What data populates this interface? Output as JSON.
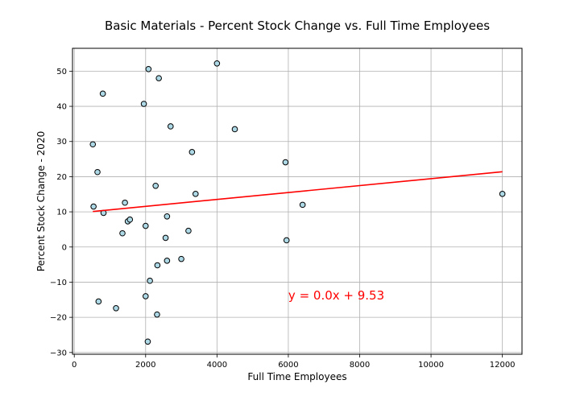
{
  "chart_data": {
    "type": "scatter",
    "title": "Basic Materials - Percent Stock Change vs. Full Time Employees",
    "xlabel": "Full Time Employees",
    "ylabel": "Percent Stock Change - 2020",
    "xlim": [
      -50,
      12550
    ],
    "ylim": [
      -30.5,
      56.5
    ],
    "xticks": [
      0,
      2000,
      4000,
      6000,
      8000,
      10000,
      12000
    ],
    "yticks": [
      -30,
      -20,
      -10,
      0,
      10,
      20,
      30,
      40,
      50
    ],
    "grid": true,
    "marker_fill": "#add8e6",
    "marker_edge": "#000000",
    "regression_color": "#ff0000",
    "points": [
      {
        "x": 520,
        "y": 29.2
      },
      {
        "x": 540,
        "y": 11.5
      },
      {
        "x": 650,
        "y": 21.3
      },
      {
        "x": 680,
        "y": -15.5
      },
      {
        "x": 800,
        "y": 43.6
      },
      {
        "x": 820,
        "y": 9.7
      },
      {
        "x": 1170,
        "y": -17.4
      },
      {
        "x": 1350,
        "y": 3.9
      },
      {
        "x": 1420,
        "y": 12.6
      },
      {
        "x": 1500,
        "y": 7.3
      },
      {
        "x": 1560,
        "y": 7.8
      },
      {
        "x": 1950,
        "y": 40.7
      },
      {
        "x": 2000,
        "y": 6.0
      },
      {
        "x": 2000,
        "y": -14.0
      },
      {
        "x": 2060,
        "y": -26.9
      },
      {
        "x": 2080,
        "y": 50.6
      },
      {
        "x": 2120,
        "y": -9.6
      },
      {
        "x": 2280,
        "y": 17.4
      },
      {
        "x": 2320,
        "y": -19.2
      },
      {
        "x": 2330,
        "y": -5.2
      },
      {
        "x": 2370,
        "y": 48.0
      },
      {
        "x": 2560,
        "y": 2.6
      },
      {
        "x": 2600,
        "y": 8.7
      },
      {
        "x": 2600,
        "y": -3.9
      },
      {
        "x": 2700,
        "y": 34.3
      },
      {
        "x": 3000,
        "y": -3.4
      },
      {
        "x": 3200,
        "y": 4.6
      },
      {
        "x": 3300,
        "y": 27.0
      },
      {
        "x": 3400,
        "y": 15.1
      },
      {
        "x": 4000,
        "y": 52.2
      },
      {
        "x": 4500,
        "y": 33.5
      },
      {
        "x": 5920,
        "y": 24.1
      },
      {
        "x": 5950,
        "y": 1.9
      },
      {
        "x": 6400,
        "y": 12.0
      },
      {
        "x": 12000,
        "y": 15.1
      }
    ],
    "regression": {
      "x": [
        520,
        12000
      ],
      "y": [
        10.1,
        21.4
      ]
    },
    "annotation": {
      "text": "y = 0.0x + 9.53",
      "x": 6000,
      "y": -14
    }
  }
}
